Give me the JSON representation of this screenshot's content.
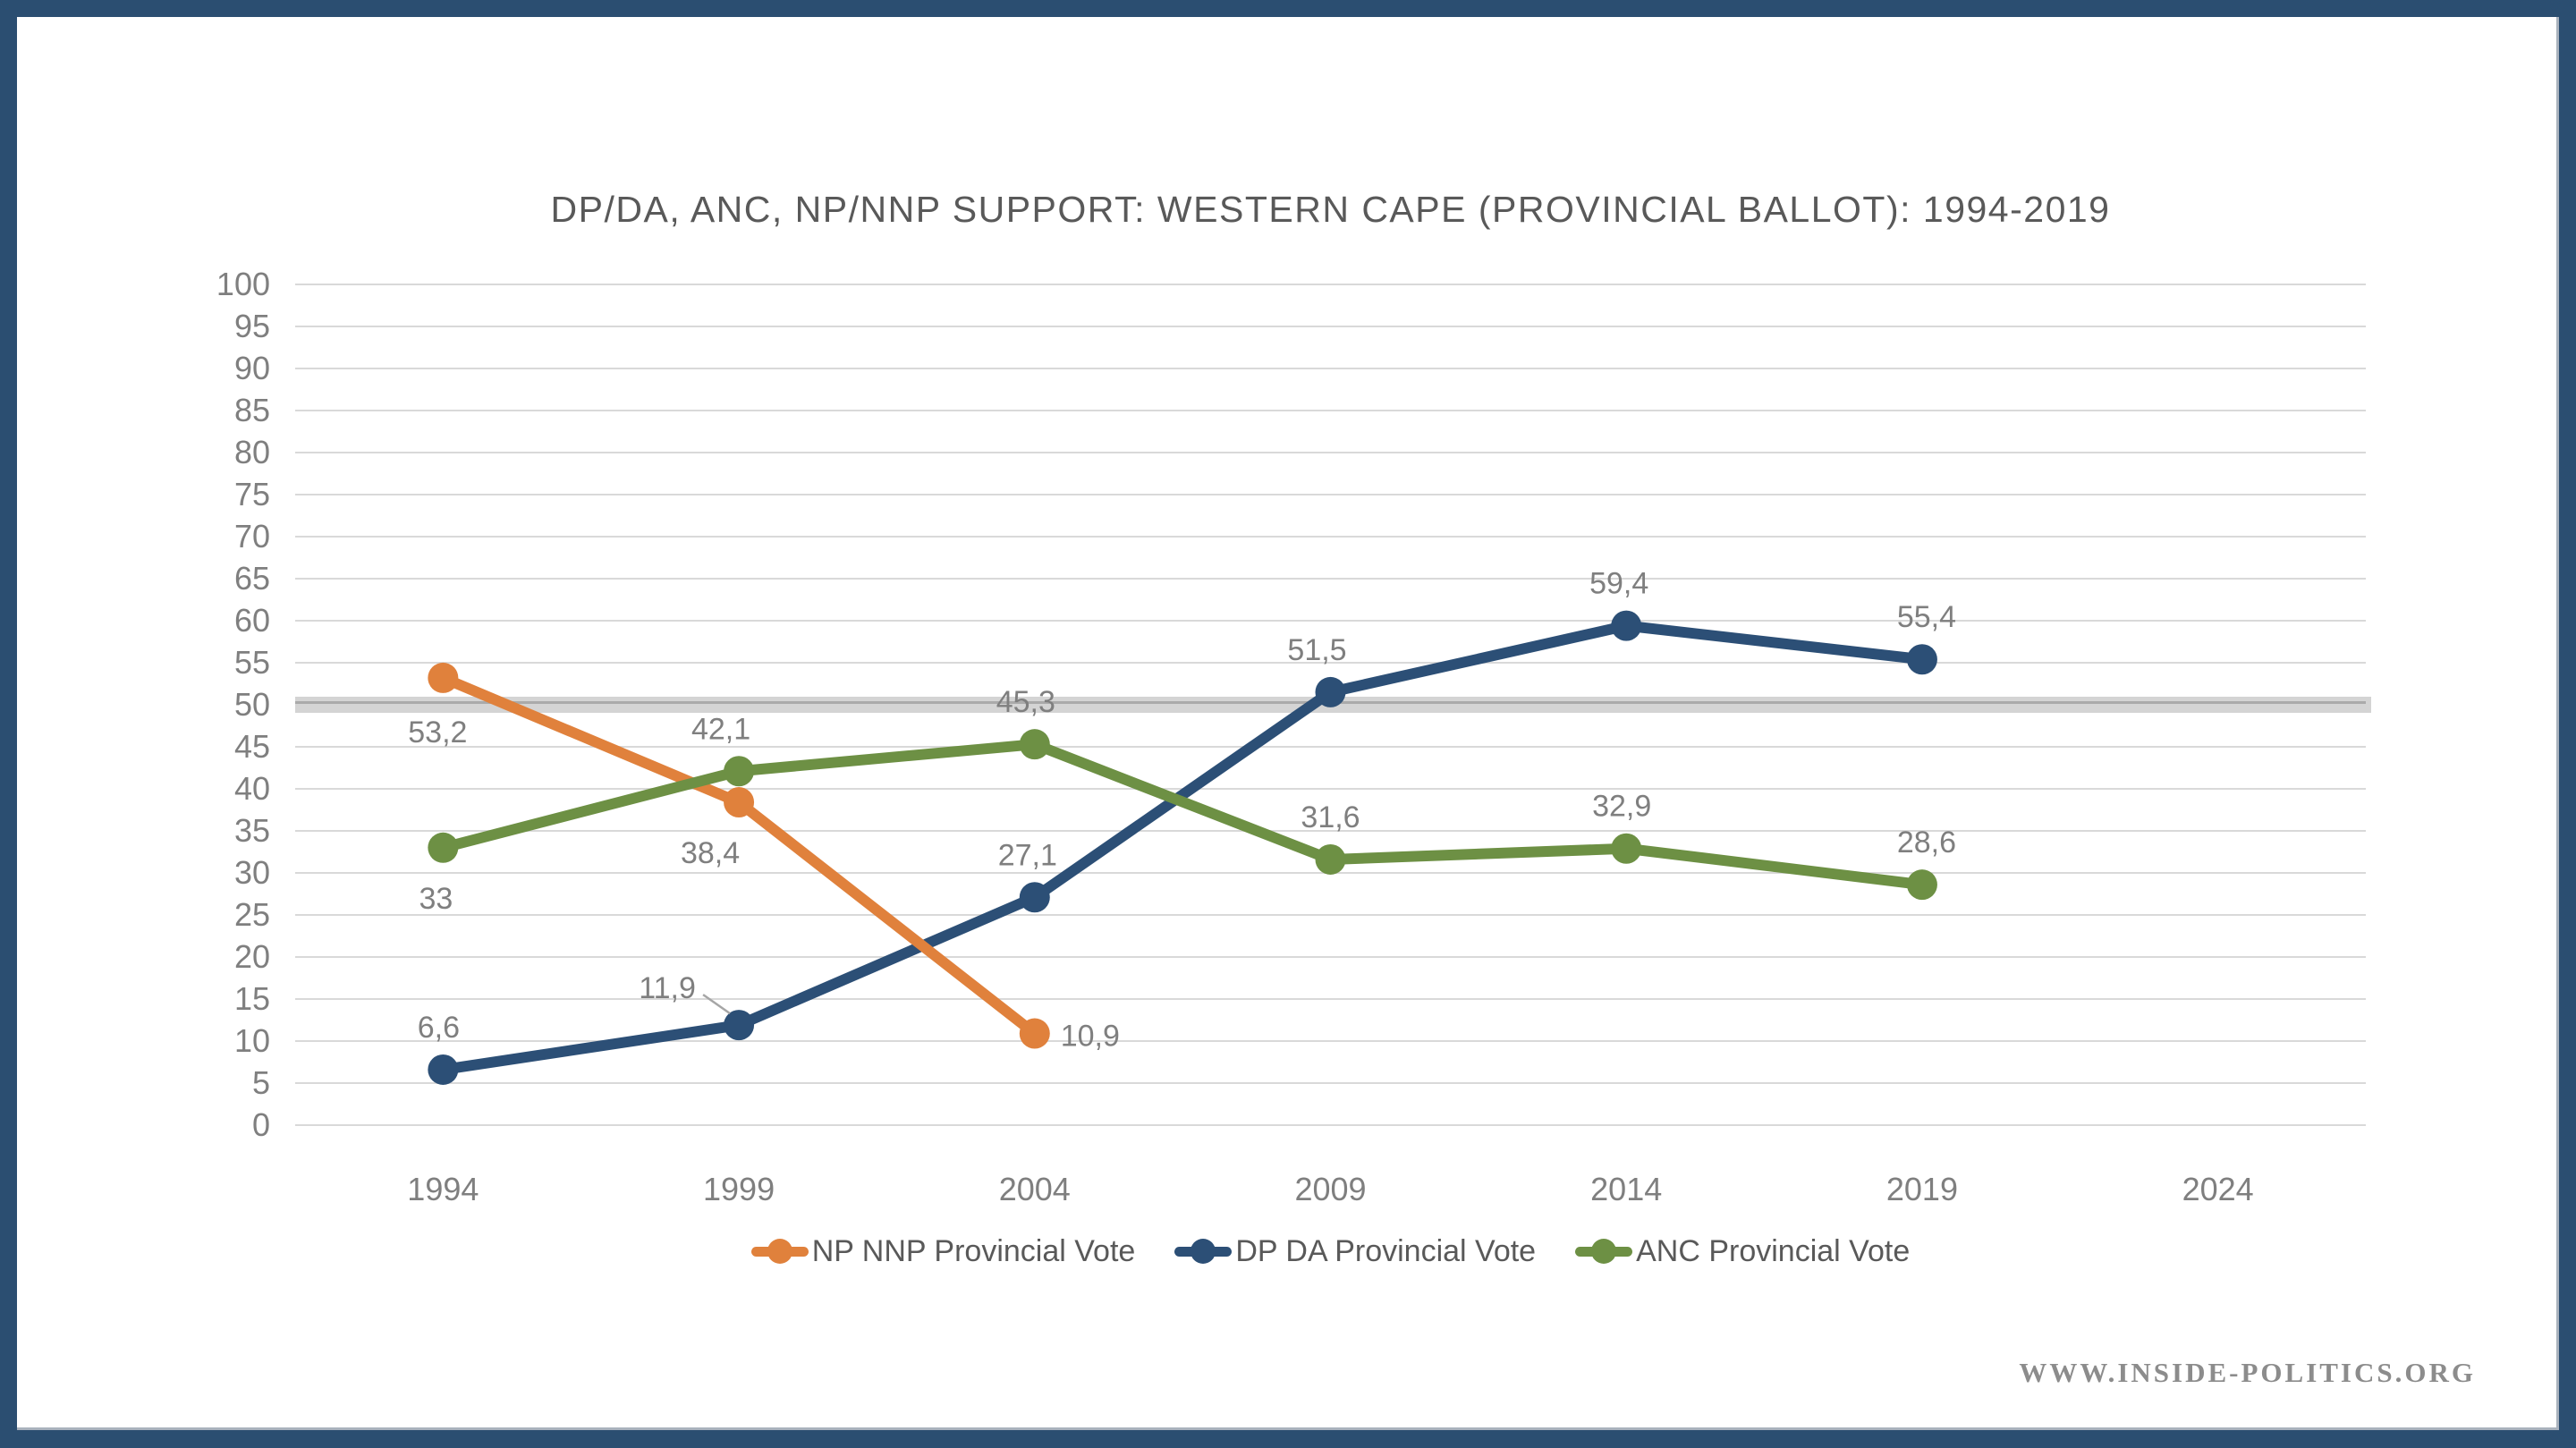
{
  "frame": {
    "border_color": "#2B4E71",
    "inner_background": "#FFFFFF",
    "edge_line_color": "#A9B2BD"
  },
  "watermark": "WWW.INSIDE-POLITICS.ORG",
  "chart_data": {
    "type": "line",
    "title": "DP/DA, ANC, NP/NNP SUPPORT: WESTERN CAPE (PROVINCIAL BALLOT): 1994-2019",
    "categories": [
      "1994",
      "1999",
      "2004",
      "2009",
      "2014",
      "2019",
      "2024"
    ],
    "y_axis": {
      "min": 0,
      "max": 100,
      "step": 5
    },
    "grid": true,
    "gridline_color": "#D9D9D9",
    "axis_label_color": "#7F7F7F",
    "data_label_color": "#7F7F7F",
    "title_color": "#595959",
    "legend_position": "bottom",
    "majority_threshold_band": {
      "value": 50,
      "band_color": "#D4D4D4",
      "line_color": "#AAAAAA"
    },
    "series": [
      {
        "name": "NP NNP Provincial Vote",
        "color": "#E0813C",
        "z": 2,
        "x": [
          "1994",
          "1999",
          "2004"
        ],
        "values": [
          53.2,
          38.4,
          10.9
        ],
        "point_labels": [
          "53,2",
          "38,4",
          "10,9"
        ],
        "label_offsets": [
          [
            -6,
            60
          ],
          [
            -32,
            56
          ],
          [
            62,
            2
          ]
        ]
      },
      {
        "name": "DP DA Provincial Vote",
        "color": "#2C4F76",
        "z": 1,
        "x": [
          "1994",
          "1999",
          "2004",
          "2009",
          "2014",
          "2019"
        ],
        "values": [
          6.6,
          11.9,
          27.1,
          51.5,
          59.4,
          55.4
        ],
        "point_labels": [
          "6,6",
          "11,9",
          "27,1",
          "51,5",
          "59,4",
          "55,4"
        ],
        "label_offsets": [
          [
            -5,
            -48
          ],
          [
            -80,
            -42
          ],
          [
            -8,
            -48
          ],
          [
            -15,
            -48
          ],
          [
            -8,
            -48
          ],
          [
            5,
            -48
          ]
        ],
        "leader_line": {
          "point_index": 1,
          "dx1": -40,
          "dy1": -34,
          "dx2": -10,
          "dy2": -13,
          "color": "#A6A6A6"
        }
      },
      {
        "name": "ANC Provincial Vote",
        "color": "#6D9044",
        "z": 3,
        "x": [
          "1994",
          "1999",
          "2004",
          "2009",
          "2014",
          "2019"
        ],
        "values": [
          33,
          42.1,
          45.3,
          31.6,
          32.9,
          28.6
        ],
        "point_labels": [
          "33",
          "42,1",
          "45,3",
          "31,6",
          "32,9",
          "28,6"
        ],
        "label_offsets": [
          [
            -8,
            56
          ],
          [
            -20,
            -48
          ],
          [
            -10,
            -48
          ],
          [
            0,
            -48
          ],
          [
            -5,
            -48
          ],
          [
            5,
            -48
          ]
        ]
      }
    ]
  }
}
